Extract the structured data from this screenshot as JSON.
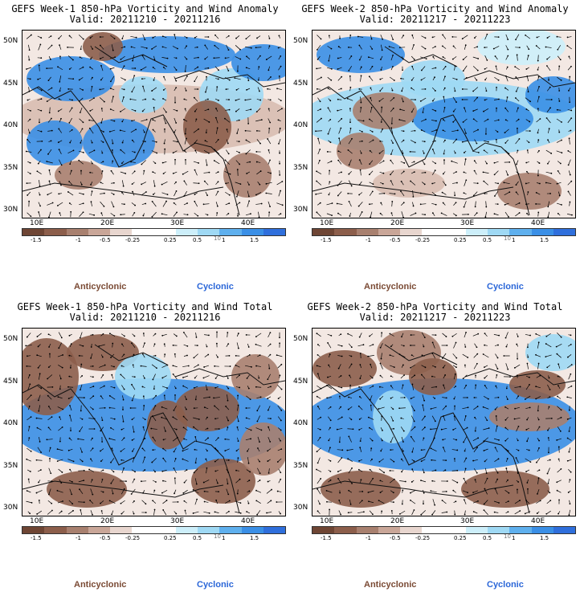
{
  "panels": [
    {
      "title": "GEFS Week-1 850-hPa Vorticity and Wind Anomaly",
      "valid": "Valid: 20211210 - 20211216",
      "variant": "anom1"
    },
    {
      "title": "GEFS Week-2 850-hPa Vorticity and Wind Anomaly",
      "valid": "Valid: 20211217 - 20211223",
      "variant": "anom2"
    },
    {
      "title": "GEFS Week-1 850-hPa Vorticity and Wind Total",
      "valid": "Valid: 20211210 - 20211216",
      "variant": "tot1"
    },
    {
      "title": "GEFS Week-2 850-hPa Vorticity and Wind Total",
      "valid": "Valid: 20211217 - 20211223",
      "variant": "tot2"
    }
  ],
  "lat_labels": [
    "50N",
    "45N",
    "40N",
    "35N",
    "30N"
  ],
  "lon_labels": [
    "10E",
    "20E",
    "30E",
    "40E"
  ],
  "colorbar": {
    "tick_labels": [
      "-1.5",
      "-1",
      "-0.5",
      "-0.25",
      "0.25",
      "0.5",
      "1",
      "1.5"
    ],
    "scale_label": "10",
    "colors": [
      "#6e4534",
      "#8c5e4b",
      "#a8806f",
      "#c9a698",
      "#e8d6cf",
      "#ffffff",
      "#ffffff",
      "#cdeffa",
      "#9fd9f4",
      "#5fb0ee",
      "#3a8fe6",
      "#2f6fdc"
    ]
  },
  "legend": {
    "anticyclonic": "Anticyclonic",
    "cyclonic": "Cyclonic"
  },
  "colors": {
    "anticyclonic": "#7a4a34",
    "cyclonic": "#2a66d8"
  }
}
